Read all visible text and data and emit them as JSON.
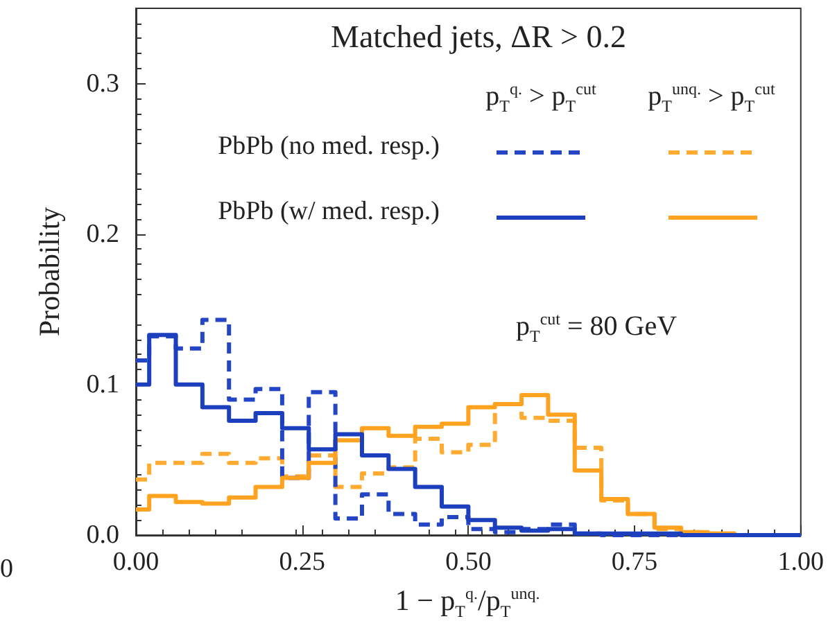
{
  "chart_data": {
    "type": "histogram",
    "xlabel": "1 − p$_{T}$$^{q.}$/p$_{T}$$^{unq.}$",
    "ylabel": "Probability",
    "annotations": [
      "Matched jets, ΔR > 0.2",
      "p$_{T}$$^{q.}$ > p$_{T}$$^{cut}$",
      "p$_{T}$$^{unq.}$ > p$_{T}$$^{cut}$",
      "PbPb (no med. resp.)",
      "PbPb (w/ med. resp.)",
      "p$_{T}$$^{cut}$ = 80 GeV",
      "0"
    ],
    "bins": [
      0,
      0.02,
      0.06,
      0.1,
      0.14,
      0.18,
      0.22,
      0.26,
      0.3,
      0.34,
      0.38,
      0.42,
      0.46,
      0.5,
      0.54,
      0.58,
      0.62,
      0.66,
      0.7,
      0.74,
      0.78,
      0.82,
      0.86,
      0.9,
      0.94,
      0.98,
      1.0
    ],
    "series": [
      {
        "color": "#1b3fbd",
        "line_style": "solid",
        "values": [
          0.1,
          0.133,
          0.1,
          0.085,
          0.076,
          0.081,
          0.071,
          0.057,
          0.067,
          0.053,
          0.044,
          0.032,
          0.019,
          0.01,
          0.005,
          0.003,
          0.004,
          0.001,
          0.001,
          0.001,
          0.001,
          0,
          0,
          0,
          0,
          0
        ]
      },
      {
        "color": "#ffa21f",
        "line_style": "solid",
        "values": [
          0.017,
          0.026,
          0.022,
          0.021,
          0.025,
          0.032,
          0.038,
          0.048,
          0.063,
          0.071,
          0.066,
          0.072,
          0.074,
          0.085,
          0.087,
          0.093,
          0.08,
          0.043,
          0.024,
          0.014,
          0.005,
          0.002,
          0.001,
          0,
          0,
          0
        ]
      },
      {
        "color": "#2446c4",
        "line_style": "dashed",
        "values": [
          0.116,
          0.132,
          0.124,
          0.143,
          0.09,
          0.097,
          0.038,
          0.095,
          0.011,
          0.027,
          0.014,
          0.007,
          0.012,
          0.004,
          0.002,
          0.004,
          0.007,
          0.001,
          0,
          0,
          0,
          0,
          0,
          0,
          0,
          0
        ]
      },
      {
        "color": "#ffaa30",
        "line_style": "dashed",
        "values": [
          0.037,
          0.048,
          0.048,
          0.054,
          0.048,
          0.051,
          0.039,
          0.053,
          0.032,
          0.041,
          0.045,
          0.064,
          0.055,
          0.06,
          0.087,
          0.078,
          0.076,
          0.058,
          0.023,
          0.014,
          0.004,
          0.002,
          0.001,
          0,
          0,
          0
        ]
      }
    ],
    "xlim": [
      0,
      1
    ],
    "xticks": [
      {
        "value": 0,
        "label": "0.00"
      },
      {
        "value": 0.25,
        "label": "0.25"
      },
      {
        "value": 0.5,
        "label": "0.50"
      },
      {
        "value": 0.75,
        "label": "0.75"
      },
      {
        "value": 1,
        "label": "1.00"
      }
    ],
    "ylim": [
      0,
      0.35
    ],
    "yticks": [
      {
        "value": 0,
        "label": "0.0"
      },
      {
        "value": 0.1,
        "label": "0.1"
      },
      {
        "value": 0.2,
        "label": "0.2"
      },
      {
        "value": 0.3,
        "label": "0.3"
      }
    ],
    "grid": false
  }
}
